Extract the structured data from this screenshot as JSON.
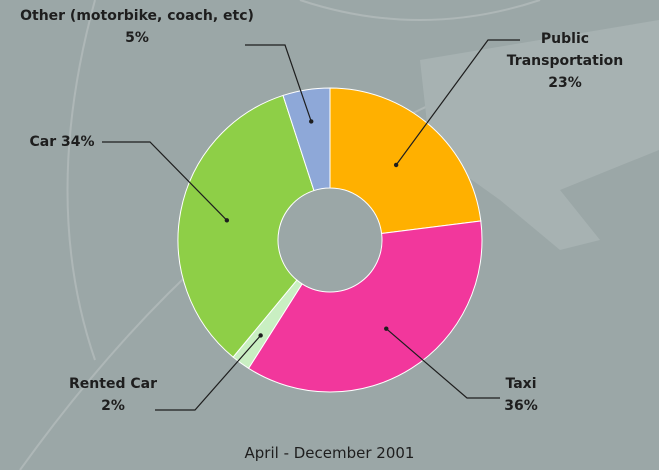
{
  "chart_data": {
    "type": "donut",
    "caption": "April - December 2001",
    "categories": [
      "Public Transportation",
      "Taxi",
      "Rented Car",
      "Car",
      "Other (motorbike, coach, etc)"
    ],
    "values": [
      23,
      36,
      2,
      34,
      5
    ],
    "value_labels": [
      "23%",
      "36%",
      "2%",
      "34%",
      "5%"
    ],
    "colors": [
      "#ffb000",
      "#f2379c",
      "#c9efc2",
      "#8ecf47",
      "#8ea8d8"
    ]
  }
}
